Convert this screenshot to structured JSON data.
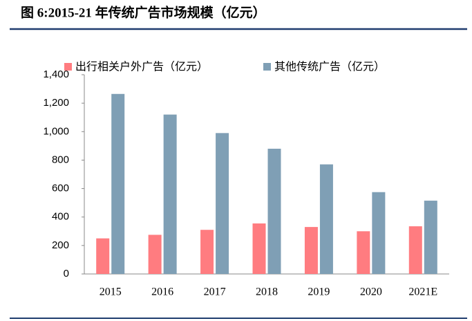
{
  "chart_data": {
    "type": "bar",
    "title": "图 6:2015-21 年传统广告市场规模（亿元）",
    "categories": [
      "2015",
      "2016",
      "2017",
      "2018",
      "2019",
      "2020",
      "2021E"
    ],
    "series": [
      {
        "name": "出行相关户外广告（亿元）",
        "color": "#ff7c80",
        "values": [
          250,
          275,
          310,
          355,
          330,
          300,
          335
        ]
      },
      {
        "name": "其他传统广告（亿元）",
        "color": "#7f9fb5",
        "values": [
          1265,
          1120,
          990,
          880,
          770,
          575,
          515
        ]
      }
    ],
    "ylim": [
      0,
      1400
    ],
    "yticks": [
      0,
      200,
      400,
      600,
      800,
      {
        "value": 1000,
        "label": "1,000"
      },
      {
        "value": 1200,
        "label": "1,200"
      },
      {
        "value": 1400,
        "label": "1,400"
      }
    ],
    "grid": false
  }
}
